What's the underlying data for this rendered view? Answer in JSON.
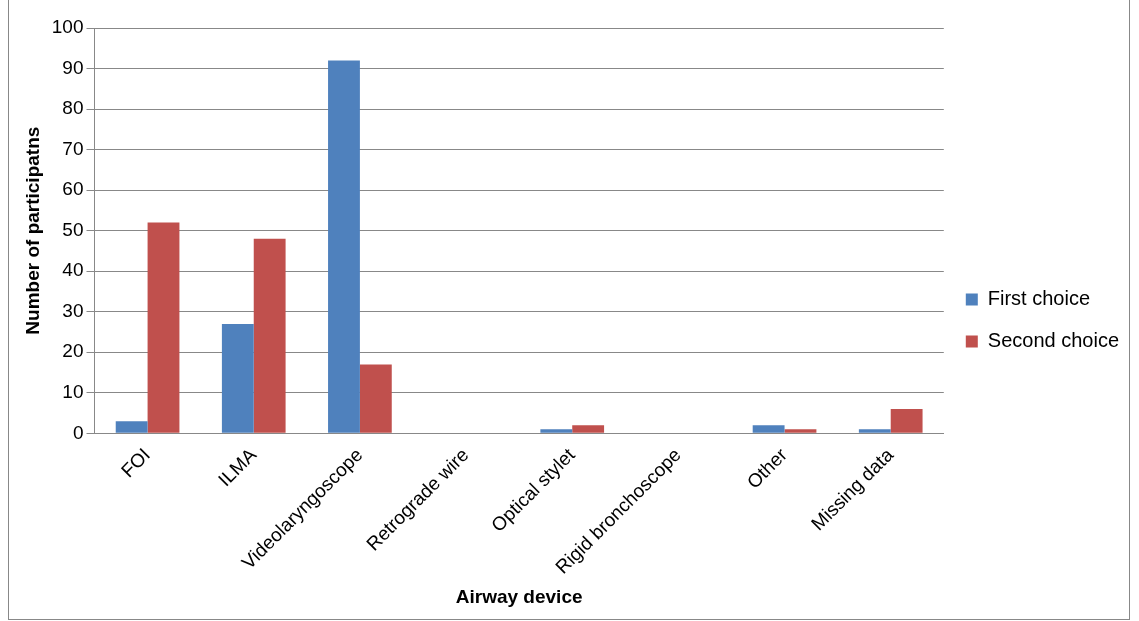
{
  "chart_data": {
    "type": "bar",
    "xlabel": "Airway device",
    "ylabel": "Number of participatns",
    "categories": [
      "FOI",
      "ILMA",
      "Videolaryngoscope",
      "Retrograde wire",
      "Optical stylet",
      "Rigid bronchoscope",
      "Other",
      "Missing data"
    ],
    "series": [
      {
        "name": "First choice",
        "color": "#4f81bd",
        "values": [
          3,
          27,
          92,
          0,
          1,
          0,
          2,
          1
        ]
      },
      {
        "name": "Second choice",
        "color": "#c0504d",
        "values": [
          52,
          48,
          17,
          0,
          2,
          0,
          1,
          6
        ]
      }
    ],
    "ylim": [
      0,
      100
    ],
    "yticks": [
      0,
      10,
      20,
      30,
      40,
      50,
      60,
      70,
      80,
      90,
      100
    ],
    "grid": "y",
    "legend": "right"
  }
}
